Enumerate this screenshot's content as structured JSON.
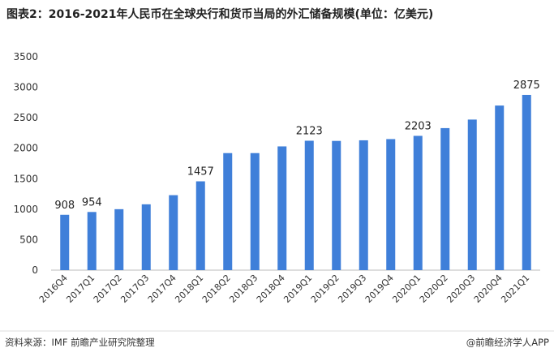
{
  "chart_data": {
    "type": "bar",
    "title": "图表2：2016-2021年人民币在全球央行和货币当局的外汇储备规模(单位：亿美元)",
    "categories": [
      "2016Q4",
      "2017Q1",
      "2017Q2",
      "2017Q3",
      "2017Q4",
      "2018Q1",
      "2018Q2",
      "2018Q3",
      "2018Q4",
      "2019Q1",
      "2019Q2",
      "2019Q3",
      "2019Q4",
      "2020Q1",
      "2020Q2",
      "2020Q3",
      "2020Q4",
      "2021Q1"
    ],
    "values": [
      908,
      954,
      1000,
      1080,
      1230,
      1457,
      1920,
      1920,
      2030,
      2123,
      2120,
      2130,
      2150,
      2203,
      2330,
      2470,
      2700,
      2875
    ],
    "value_labels": [
      "908",
      "954",
      null,
      null,
      null,
      "1457",
      null,
      null,
      null,
      "2123",
      null,
      null,
      null,
      "2203",
      null,
      null,
      null,
      "2875"
    ],
    "color": "#3f7fd9",
    "ylim": [
      0,
      3500
    ],
    "yticks": [
      0,
      500,
      1000,
      1500,
      2000,
      2500,
      3000,
      3500
    ],
    "grid": false,
    "source": "资料来源：IMF 前瞻产业研究院整理",
    "credit": "@前瞻经济学人APP"
  }
}
